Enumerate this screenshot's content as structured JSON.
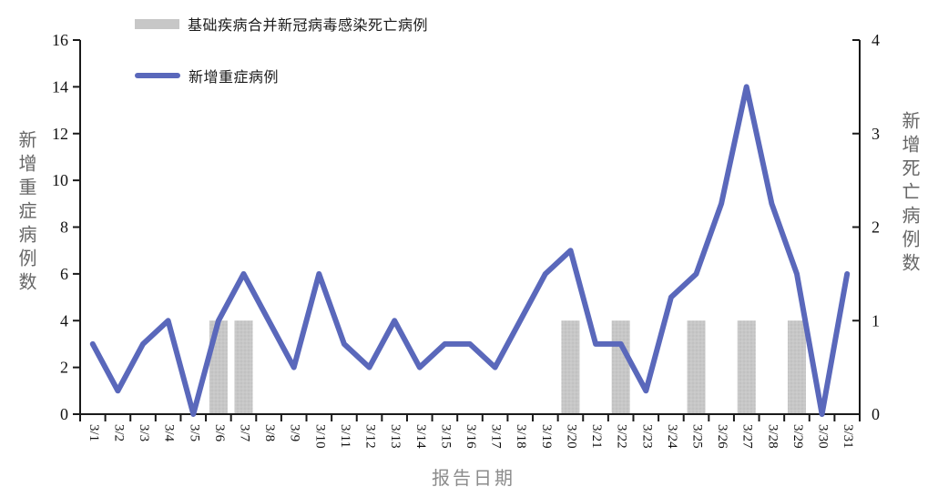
{
  "figure": {
    "background": "#ffffff"
  },
  "legend": {
    "items": [
      {
        "label": "基础疾病合并新冠病毒感染死亡病例",
        "swatch": "bar",
        "color": "#c7c7c7"
      },
      {
        "label": "新增重症病例",
        "swatch": "line",
        "color": "#5a68bb"
      }
    ]
  },
  "axes": {
    "left_title": "新增重症病例数",
    "right_title": "新增死亡病例数",
    "x_title": "报告日期"
  },
  "chart_data": {
    "type": "combo",
    "x": [
      "3/1",
      "3/2",
      "3/3",
      "3/4",
      "3/5",
      "3/6",
      "3/7",
      "3/8",
      "3/9",
      "3/10",
      "3/11",
      "3/12",
      "3/13",
      "3/14",
      "3/15",
      "3/16",
      "3/17",
      "3/18",
      "3/19",
      "3/20",
      "3/21",
      "3/22",
      "3/23",
      "3/24",
      "3/25",
      "3/26",
      "3/27",
      "3/28",
      "3/29",
      "3/30",
      "3/31"
    ],
    "series": [
      {
        "name": "基础疾病合并新冠病毒感染死亡病例",
        "type": "bar",
        "axis": "right",
        "color": "#c7c7c7",
        "values": [
          0,
          0,
          0,
          0,
          0,
          1,
          1,
          0,
          0,
          0,
          0,
          0,
          0,
          0,
          0,
          0,
          0,
          0,
          0,
          1,
          0,
          1,
          0,
          0,
          1,
          0,
          1,
          0,
          1,
          0,
          0
        ]
      },
      {
        "name": "新增重症病例",
        "type": "line",
        "axis": "left",
        "color": "#5a68bb",
        "values": [
          3,
          1,
          3,
          4,
          0,
          4,
          6,
          4,
          2,
          6,
          3,
          2,
          4,
          2,
          3,
          3,
          2,
          4,
          6,
          7,
          3,
          3,
          1,
          5,
          6,
          9,
          14,
          9,
          6,
          0,
          6
        ]
      }
    ],
    "left_axis": {
      "title": "新增重症病例数",
      "min": 0,
      "max": 16,
      "step": 2
    },
    "right_axis": {
      "title": "新增死亡病例数",
      "min": 0,
      "max": 4,
      "step": 1
    },
    "xlabel": "报告日期",
    "grid": false,
    "legend_position": "top-left",
    "axis_color": "#1a1a1a",
    "tick_label_color": "#111111"
  }
}
